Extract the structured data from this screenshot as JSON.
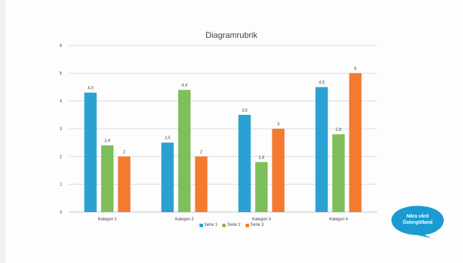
{
  "chart_data": {
    "type": "bar",
    "title": "Diagramrubrik",
    "categories": [
      "Kategori 1",
      "Kategori 2",
      "Kategori 3",
      "Kategori 4"
    ],
    "series": [
      {
        "name": "Serie 1",
        "color": "#2aa0d3",
        "values": [
          4.3,
          2.5,
          3.5,
          4.5
        ],
        "labels": [
          "4,3",
          "2,5",
          "3,5",
          "4,5"
        ]
      },
      {
        "name": "Serie 2",
        "color": "#7ebf5c",
        "values": [
          2.4,
          4.4,
          1.8,
          2.8
        ],
        "labels": [
          "2,4",
          "4,4",
          "1,8",
          "2,8"
        ]
      },
      {
        "name": "Serie 3",
        "color": "#f37a2e",
        "values": [
          2,
          2,
          3,
          5
        ],
        "labels": [
          "2",
          "2",
          "3",
          "5"
        ]
      }
    ],
    "yticks": [
      "0",
      "1",
      "2",
      "3",
      "4",
      "5",
      "6"
    ],
    "ylim": [
      0,
      6
    ],
    "grid": true,
    "legend_position": "bottom"
  },
  "badge": {
    "line1": "Nära vård",
    "line2": "Östergötland",
    "color": "#1a9bd1"
  }
}
